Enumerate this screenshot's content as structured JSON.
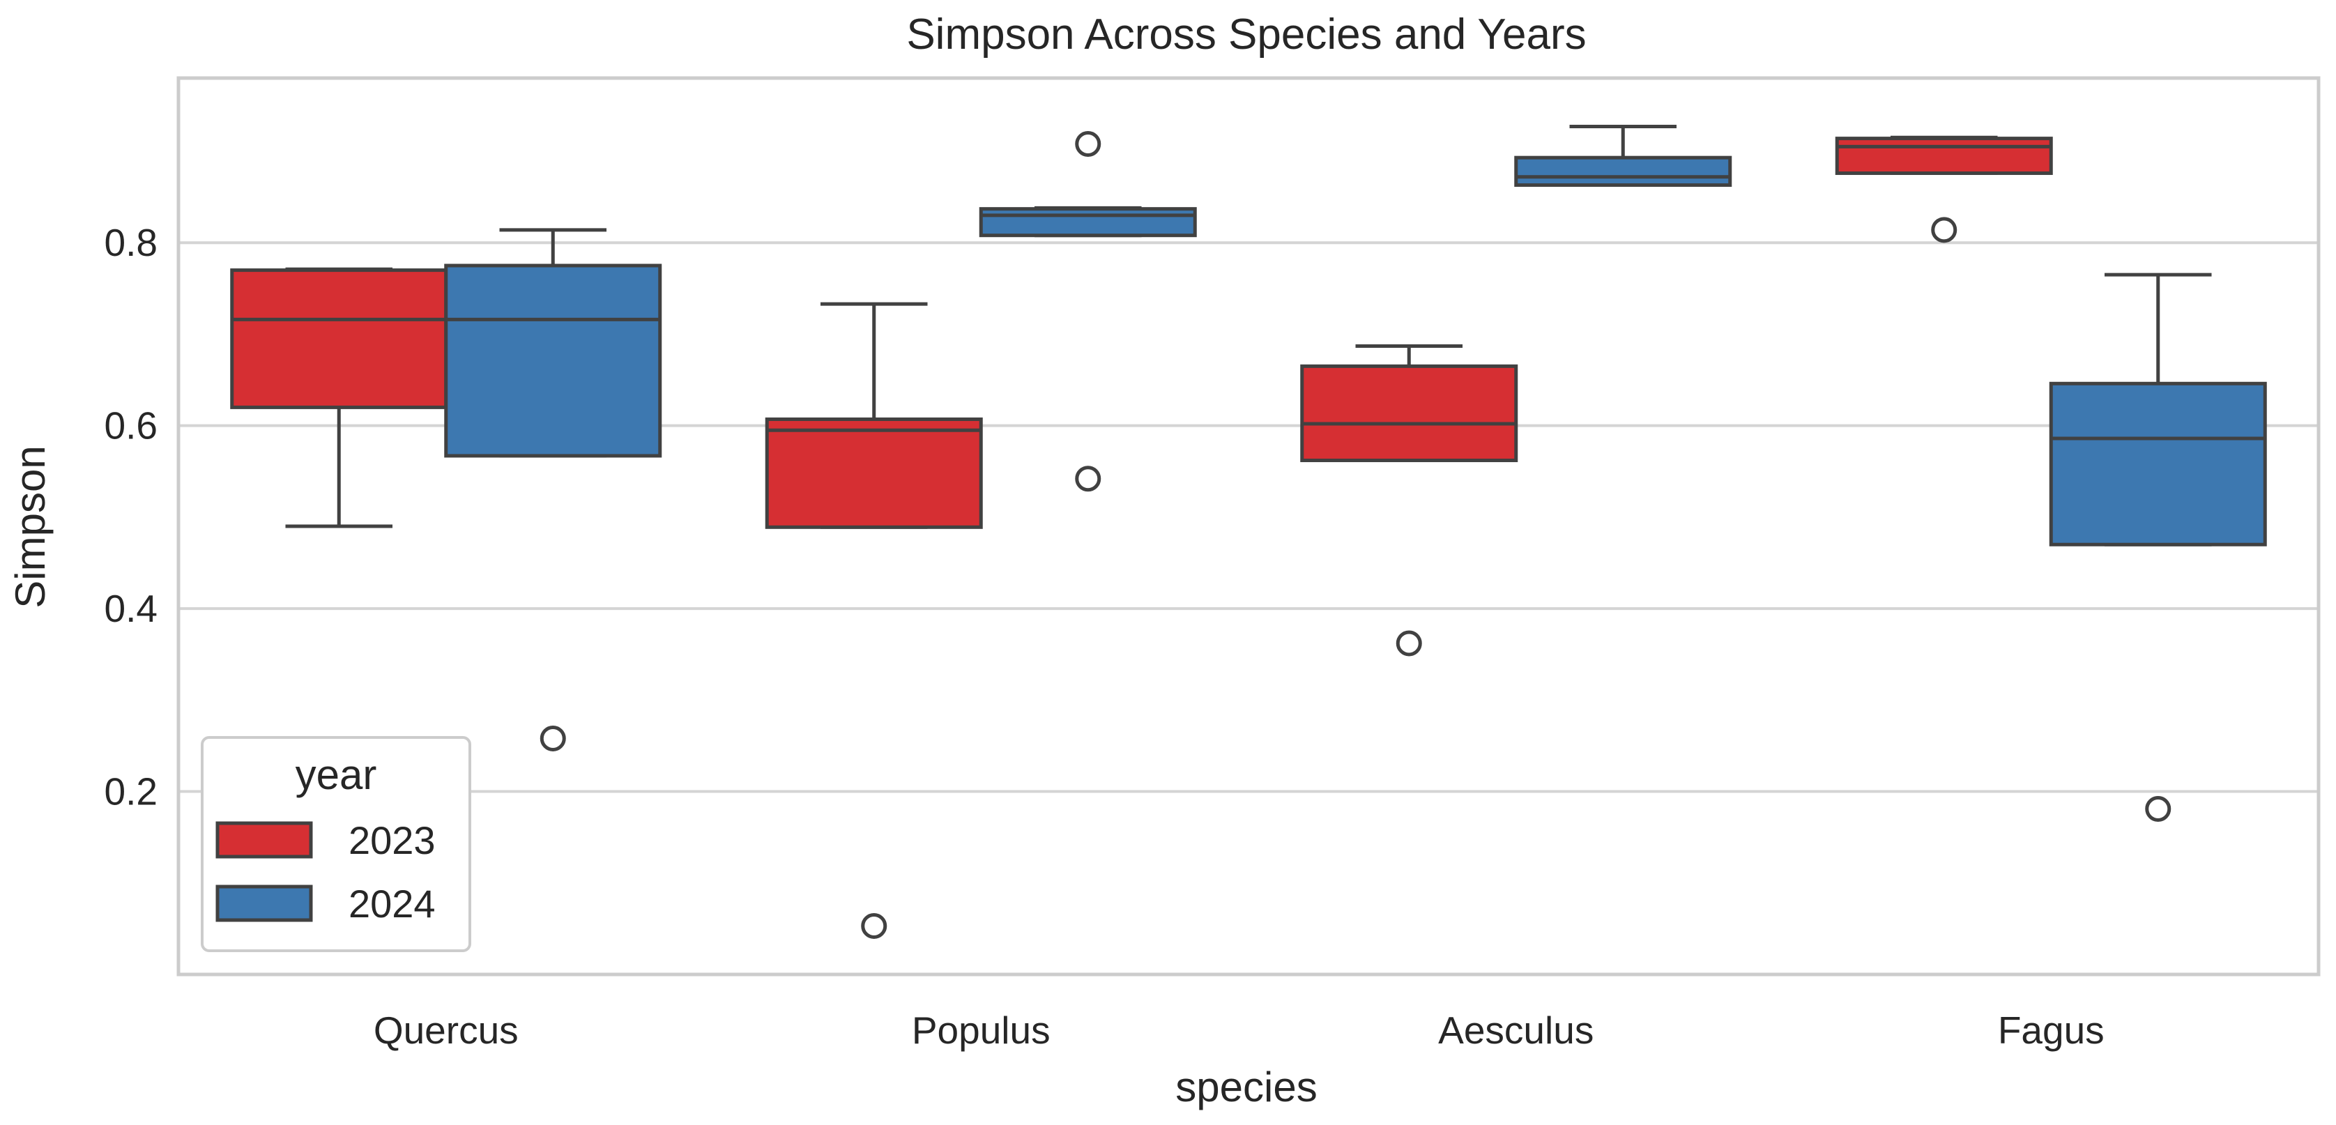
{
  "chart_data": {
    "type": "box",
    "title": "Simpson Across Species and Years",
    "xlabel": "species",
    "ylabel": "Simpson",
    "categories": [
      "Quercus",
      "Populus",
      "Aesculus",
      "Fagus"
    ],
    "ylim": [
      0.0,
      0.98
    ],
    "yticks": [
      0.2,
      0.4,
      0.6,
      0.8
    ],
    "ytick_labels": [
      "0.2",
      "0.4",
      "0.6",
      "0.8"
    ],
    "grid": true,
    "legend": {
      "title": "year",
      "position": "lower-left"
    },
    "series": [
      {
        "name": "2023",
        "color": "#d62f33",
        "boxes": [
          {
            "whisker_low": 0.49,
            "q1": 0.62,
            "median": 0.716,
            "q3": 0.77,
            "whisker_high": 0.771,
            "outliers": []
          },
          {
            "whisker_low": 0.489,
            "q1": 0.489,
            "median": 0.595,
            "q3": 0.607,
            "whisker_high": 0.733,
            "outliers": [
              0.053
            ]
          },
          {
            "whisker_low": 0.562,
            "q1": 0.562,
            "median": 0.602,
            "q3": 0.665,
            "whisker_high": 0.687,
            "outliers": [
              0.362
            ]
          },
          {
            "whisker_low": 0.876,
            "q1": 0.876,
            "median": 0.905,
            "q3": 0.914,
            "whisker_high": 0.915,
            "outliers": [
              0.814
            ]
          }
        ]
      },
      {
        "name": "2024",
        "color": "#3d78b0",
        "boxes": [
          {
            "whisker_low": 0.567,
            "q1": 0.567,
            "median": 0.716,
            "q3": 0.775,
            "whisker_high": 0.814,
            "outliers": [
              0.258
            ]
          },
          {
            "whisker_low": 0.808,
            "q1": 0.808,
            "median": 0.83,
            "q3": 0.837,
            "whisker_high": 0.838,
            "outliers": [
              0.908,
              0.542
            ]
          },
          {
            "whisker_low": 0.863,
            "q1": 0.863,
            "median": 0.872,
            "q3": 0.893,
            "whisker_high": 0.927,
            "outliers": []
          },
          {
            "whisker_low": 0.47,
            "q1": 0.47,
            "median": 0.586,
            "q3": 0.646,
            "whisker_high": 0.765,
            "outliers": [
              0.181
            ]
          }
        ]
      }
    ]
  }
}
